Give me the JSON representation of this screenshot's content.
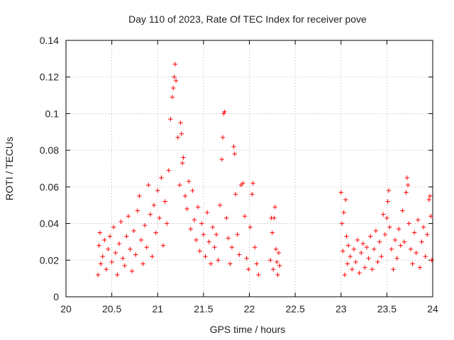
{
  "chart_data": {
    "type": "scatter",
    "title": "Day 110 of 2023, Rate Of TEC Index for receiver pove",
    "xlabel": "GPS time / hours",
    "ylabel": "ROTI / TECUs",
    "xlim": [
      20,
      24
    ],
    "ylim": [
      0,
      0.14
    ],
    "x_ticks": [
      "20",
      "20.5",
      "21",
      "21.5",
      "22",
      "22.5",
      "23",
      "23.5",
      "24"
    ],
    "y_ticks": [
      "0",
      "0.02",
      "0.04",
      "0.06",
      "0.08",
      "0.1",
      "0.12",
      "0.14"
    ],
    "grid": true,
    "marker": "+",
    "color": "#ff0000",
    "series": [
      {
        "name": "ROTI",
        "points": [
          [
            20.35,
            0.012
          ],
          [
            20.36,
            0.028
          ],
          [
            20.37,
            0.035
          ],
          [
            20.38,
            0.018
          ],
          [
            20.4,
            0.022
          ],
          [
            20.42,
            0.031
          ],
          [
            20.44,
            0.015
          ],
          [
            20.46,
            0.026
          ],
          [
            20.48,
            0.033
          ],
          [
            20.5,
            0.019
          ],
          [
            20.52,
            0.038
          ],
          [
            20.54,
            0.024
          ],
          [
            20.56,
            0.012
          ],
          [
            20.58,
            0.029
          ],
          [
            20.6,
            0.041
          ],
          [
            20.62,
            0.021
          ],
          [
            20.64,
            0.017
          ],
          [
            20.66,
            0.033
          ],
          [
            20.68,
            0.044
          ],
          [
            20.7,
            0.026
          ],
          [
            20.72,
            0.014
          ],
          [
            20.74,
            0.036
          ],
          [
            20.76,
            0.023
          ],
          [
            20.78,
            0.047
          ],
          [
            20.8,
            0.055
          ],
          [
            20.82,
            0.031
          ],
          [
            20.84,
            0.018
          ],
          [
            20.86,
            0.039
          ],
          [
            20.88,
            0.027
          ],
          [
            20.9,
            0.061
          ],
          [
            20.92,
            0.045
          ],
          [
            20.94,
            0.022
          ],
          [
            20.96,
            0.05
          ],
          [
            20.98,
            0.035
          ],
          [
            21.0,
            0.058
          ],
          [
            21.02,
            0.043
          ],
          [
            21.04,
            0.065
          ],
          [
            21.06,
            0.028
          ],
          [
            21.08,
            0.052
          ],
          [
            21.1,
            0.04
          ],
          [
            21.12,
            0.069
          ],
          [
            21.14,
            0.097
          ],
          [
            21.16,
            0.109
          ],
          [
            21.17,
            0.114
          ],
          [
            21.18,
            0.12
          ],
          [
            21.19,
            0.127
          ],
          [
            21.2,
            0.118
          ],
          [
            21.22,
            0.087
          ],
          [
            21.24,
            0.061
          ],
          [
            21.25,
            0.095
          ],
          [
            21.26,
            0.089
          ],
          [
            21.27,
            0.073
          ],
          [
            21.28,
            0.076
          ],
          [
            21.3,
            0.055
          ],
          [
            21.32,
            0.048
          ],
          [
            21.34,
            0.063
          ],
          [
            21.36,
            0.037
          ],
          [
            21.38,
            0.058
          ],
          [
            21.4,
            0.042
          ],
          [
            21.42,
            0.031
          ],
          [
            21.44,
            0.049
          ],
          [
            21.46,
            0.025
          ],
          [
            21.48,
            0.04
          ],
          [
            21.5,
            0.034
          ],
          [
            21.52,
            0.022
          ],
          [
            21.54,
            0.046
          ],
          [
            21.56,
            0.03
          ],
          [
            21.58,
            0.018
          ],
          [
            21.6,
            0.038
          ],
          [
            21.62,
            0.027
          ],
          [
            21.64,
            0.034
          ],
          [
            21.66,
            0.02
          ],
          [
            21.68,
            0.05
          ],
          [
            21.7,
            0.075
          ],
          [
            21.71,
            0.087
          ],
          [
            21.72,
            0.1
          ],
          [
            21.73,
            0.101
          ],
          [
            21.75,
            0.043
          ],
          [
            21.77,
            0.032
          ],
          [
            21.79,
            0.018
          ],
          [
            21.81,
            0.027
          ],
          [
            21.83,
            0.082
          ],
          [
            21.84,
            0.078
          ],
          [
            21.85,
            0.056
          ],
          [
            21.87,
            0.034
          ],
          [
            21.89,
            0.023
          ],
          [
            21.91,
            0.061
          ],
          [
            21.93,
            0.062
          ],
          [
            21.95,
            0.044
          ],
          [
            21.97,
            0.021
          ],
          [
            21.99,
            0.015
          ],
          [
            22.01,
            0.038
          ],
          [
            22.03,
            0.056
          ],
          [
            22.04,
            0.062
          ],
          [
            22.06,
            0.027
          ],
          [
            22.08,
            0.018
          ],
          [
            22.1,
            0.012
          ],
          [
            22.23,
            0.02
          ],
          [
            22.24,
            0.043
          ],
          [
            22.25,
            0.035
          ],
          [
            22.26,
            0.015
          ],
          [
            22.27,
            0.043
          ],
          [
            22.28,
            0.049
          ],
          [
            22.29,
            0.026
          ],
          [
            22.3,
            0.019
          ],
          [
            22.31,
            0.012
          ],
          [
            22.32,
            0.024
          ],
          [
            22.33,
            0.017
          ],
          [
            23.0,
            0.057
          ],
          [
            23.01,
            0.04
          ],
          [
            23.02,
            0.025
          ],
          [
            23.03,
            0.046
          ],
          [
            23.04,
            0.012
          ],
          [
            23.05,
            0.053
          ],
          [
            23.06,
            0.033
          ],
          [
            23.07,
            0.018
          ],
          [
            23.08,
            0.028
          ],
          [
            23.1,
            0.022
          ],
          [
            23.12,
            0.015
          ],
          [
            23.14,
            0.026
          ],
          [
            23.16,
            0.019
          ],
          [
            23.18,
            0.031
          ],
          [
            23.2,
            0.013
          ],
          [
            23.22,
            0.024
          ],
          [
            23.24,
            0.029
          ],
          [
            23.26,
            0.016
          ],
          [
            23.28,
            0.027
          ],
          [
            23.3,
            0.021
          ],
          [
            23.32,
            0.033
          ],
          [
            23.34,
            0.015
          ],
          [
            23.36,
            0.026
          ],
          [
            23.38,
            0.036
          ],
          [
            23.4,
            0.019
          ],
          [
            23.42,
            0.03
          ],
          [
            23.44,
            0.022
          ],
          [
            23.46,
            0.045
          ],
          [
            23.48,
            0.034
          ],
          [
            23.5,
            0.043
          ],
          [
            23.51,
            0.052
          ],
          [
            23.52,
            0.058
          ],
          [
            23.53,
            0.038
          ],
          [
            23.55,
            0.026
          ],
          [
            23.57,
            0.015
          ],
          [
            23.59,
            0.031
          ],
          [
            23.61,
            0.021
          ],
          [
            23.63,
            0.037
          ],
          [
            23.65,
            0.028
          ],
          [
            23.67,
            0.047
          ],
          [
            23.69,
            0.03
          ],
          [
            23.71,
            0.057
          ],
          [
            23.72,
            0.065
          ],
          [
            23.73,
            0.061
          ],
          [
            23.74,
            0.04
          ],
          [
            23.76,
            0.026
          ],
          [
            23.78,
            0.018
          ],
          [
            23.8,
            0.035
          ],
          [
            23.82,
            0.024
          ],
          [
            23.84,
            0.042
          ],
          [
            23.86,
            0.016
          ],
          [
            23.88,
            0.03
          ],
          [
            23.9,
            0.038
          ],
          [
            23.92,
            0.022
          ],
          [
            23.94,
            0.034
          ],
          [
            23.96,
            0.053
          ],
          [
            23.97,
            0.055
          ],
          [
            23.98,
            0.044
          ],
          [
            23.99,
            0.02
          ]
        ]
      }
    ]
  }
}
